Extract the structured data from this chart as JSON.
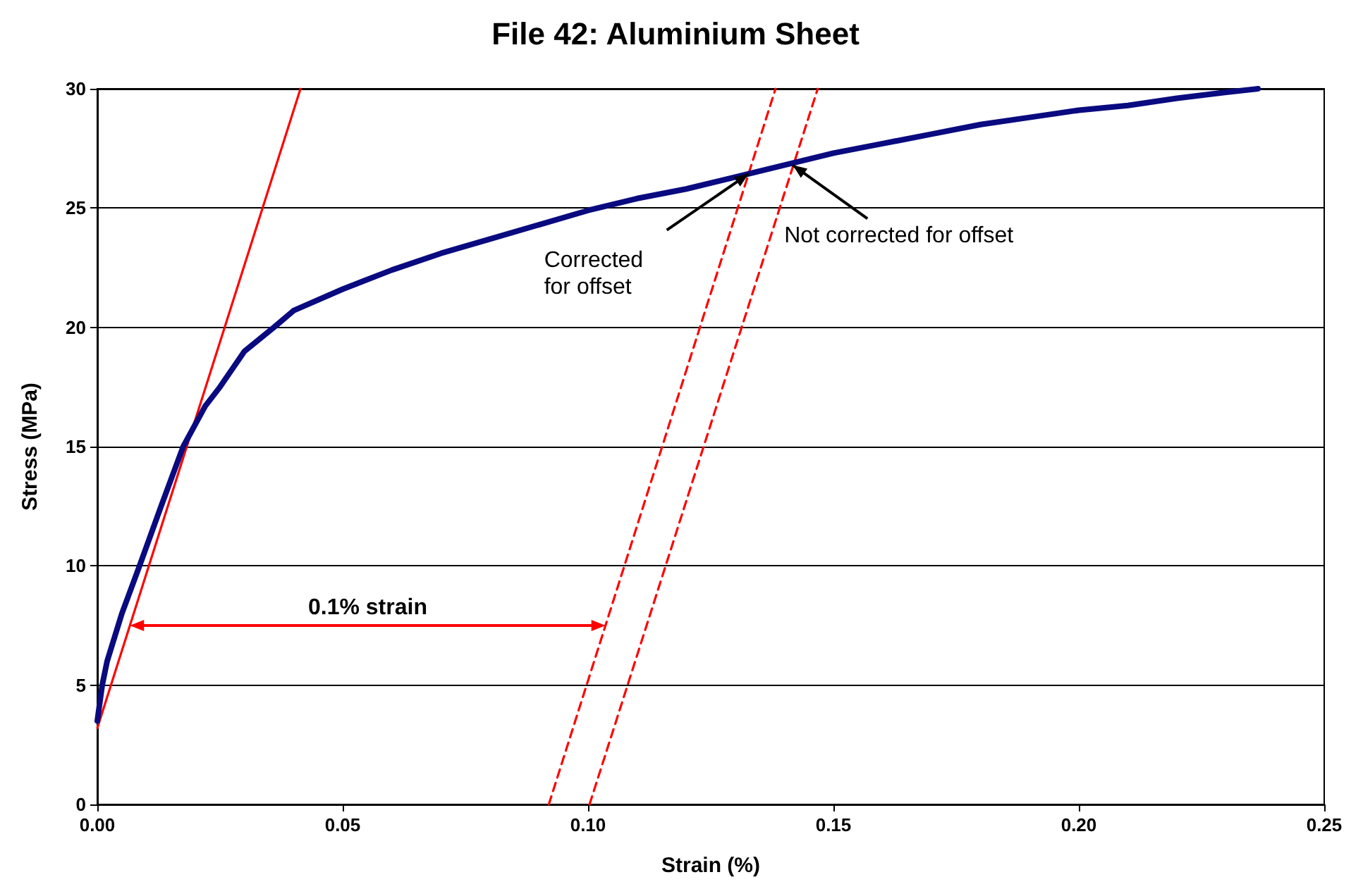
{
  "chart_data": {
    "type": "line",
    "title": "File 42: Aluminium Sheet",
    "xlabel": "Strain (%)",
    "ylabel": "Stress (MPa)",
    "xlim": [
      0,
      0.25
    ],
    "ylim": [
      0,
      30
    ],
    "xticks": [
      {
        "value": 0,
        "label": "0.00"
      },
      {
        "value": 0.05,
        "label": "0.05"
      },
      {
        "value": 0.1,
        "label": "0.10"
      },
      {
        "value": 0.15,
        "label": "0.15"
      },
      {
        "value": 0.2,
        "label": "0.20"
      },
      {
        "value": 0.25,
        "label": "0.25"
      }
    ],
    "yticks": [
      0,
      5,
      10,
      15,
      20,
      25,
      30
    ],
    "grid": "y",
    "series": [
      {
        "color": "#0a0a80",
        "x": [
          0,
          0.001,
          0.002,
          0.005,
          0.0086,
          0.013,
          0.0175,
          0.022,
          0.025,
          0.03,
          0.036,
          0.04,
          0.05,
          0.06,
          0.07,
          0.08,
          0.09,
          0.1,
          0.11,
          0.12,
          0.13,
          0.14,
          0.15,
          0.16,
          0.17,
          0.18,
          0.19,
          0.2,
          0.21,
          0.22,
          0.23,
          0.2365
        ],
        "values": [
          3.5,
          5,
          6,
          8,
          10,
          12.5,
          15,
          16.7,
          17.5,
          19,
          20,
          20.7,
          21.6,
          22.4,
          23.1,
          23.7,
          24.3,
          24.9,
          25.4,
          25.8,
          26.3,
          26.8,
          27.3,
          27.7,
          28.1,
          28.5,
          28.8,
          29.1,
          29.3,
          29.6,
          29.85,
          30
        ]
      },
      {
        "color": "#ff0000",
        "line_style": "solid",
        "x": [
          0,
          0.0414
        ],
        "values": [
          3.2,
          30
        ]
      },
      {
        "color": "#ff0000",
        "line_style": "dashed",
        "x": [
          0.092,
          0.1382
        ],
        "values": [
          0,
          30
        ]
      },
      {
        "color": "#ff0000",
        "line_style": "dashed",
        "x": [
          0.1003,
          0.1468
        ],
        "values": [
          0,
          30
        ]
      }
    ],
    "annotations": [
      "0.1% strain",
      "Corrected for offset",
      {
        "text": "Not corrected for offset",
        "x": 0.1417,
        "y": 26.8
      }
    ]
  }
}
